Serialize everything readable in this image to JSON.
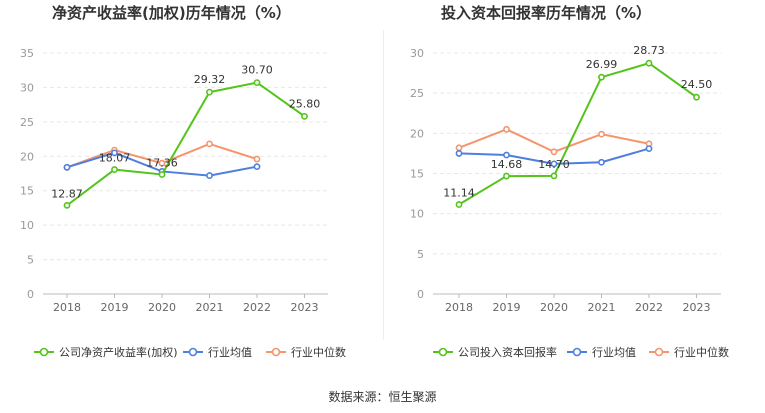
{
  "source": "数据来源：恒生聚源",
  "colors": {
    "company": "#52c41a",
    "industry_avg": "#4e7fde",
    "industry_median": "#f4956c",
    "axis": "#999999",
    "grid": "#e8e8e8",
    "label": "#333333"
  },
  "chart_data": [
    {
      "type": "line",
      "title": "净资产收益率(加权)历年情况（%）",
      "xlabel": "",
      "ylabel": "",
      "categories": [
        "2018",
        "2019",
        "2020",
        "2021",
        "2022",
        "2023"
      ],
      "ylim": [
        0,
        35
      ],
      "yticks": [
        0,
        5,
        10,
        15,
        20,
        25,
        30,
        35
      ],
      "series": [
        {
          "name": "公司净资产收益率(加权)",
          "values": [
            12.87,
            18.07,
            17.36,
            29.32,
            30.7,
            25.8
          ],
          "labels": [
            "12.87",
            "18.07",
            "17.36",
            "29.32",
            "30.70",
            "25.80"
          ]
        },
        {
          "name": "行业均值",
          "values": [
            18.4,
            20.5,
            17.8,
            17.2,
            18.5,
            null
          ]
        },
        {
          "name": "行业中位数",
          "values": [
            18.4,
            20.9,
            19.0,
            21.8,
            19.6,
            null
          ]
        }
      ]
    },
    {
      "type": "line",
      "title": "投入资本回报率历年情况（%）",
      "xlabel": "",
      "ylabel": "",
      "categories": [
        "2018",
        "2019",
        "2020",
        "2021",
        "2022",
        "2023"
      ],
      "ylim": [
        0,
        30
      ],
      "yticks": [
        0,
        5,
        10,
        15,
        20,
        25,
        30
      ],
      "series": [
        {
          "name": "公司投入资本回报率",
          "values": [
            11.14,
            14.68,
            14.7,
            26.99,
            28.73,
            24.5
          ],
          "labels": [
            "11.14",
            "14.68",
            "14.70",
            "26.99",
            "28.73",
            "24.50"
          ]
        },
        {
          "name": "行业均值",
          "values": [
            17.5,
            17.3,
            16.2,
            16.4,
            18.1,
            null
          ]
        },
        {
          "name": "行业中位数",
          "values": [
            18.2,
            20.5,
            17.7,
            19.9,
            18.7,
            null
          ]
        }
      ]
    }
  ]
}
